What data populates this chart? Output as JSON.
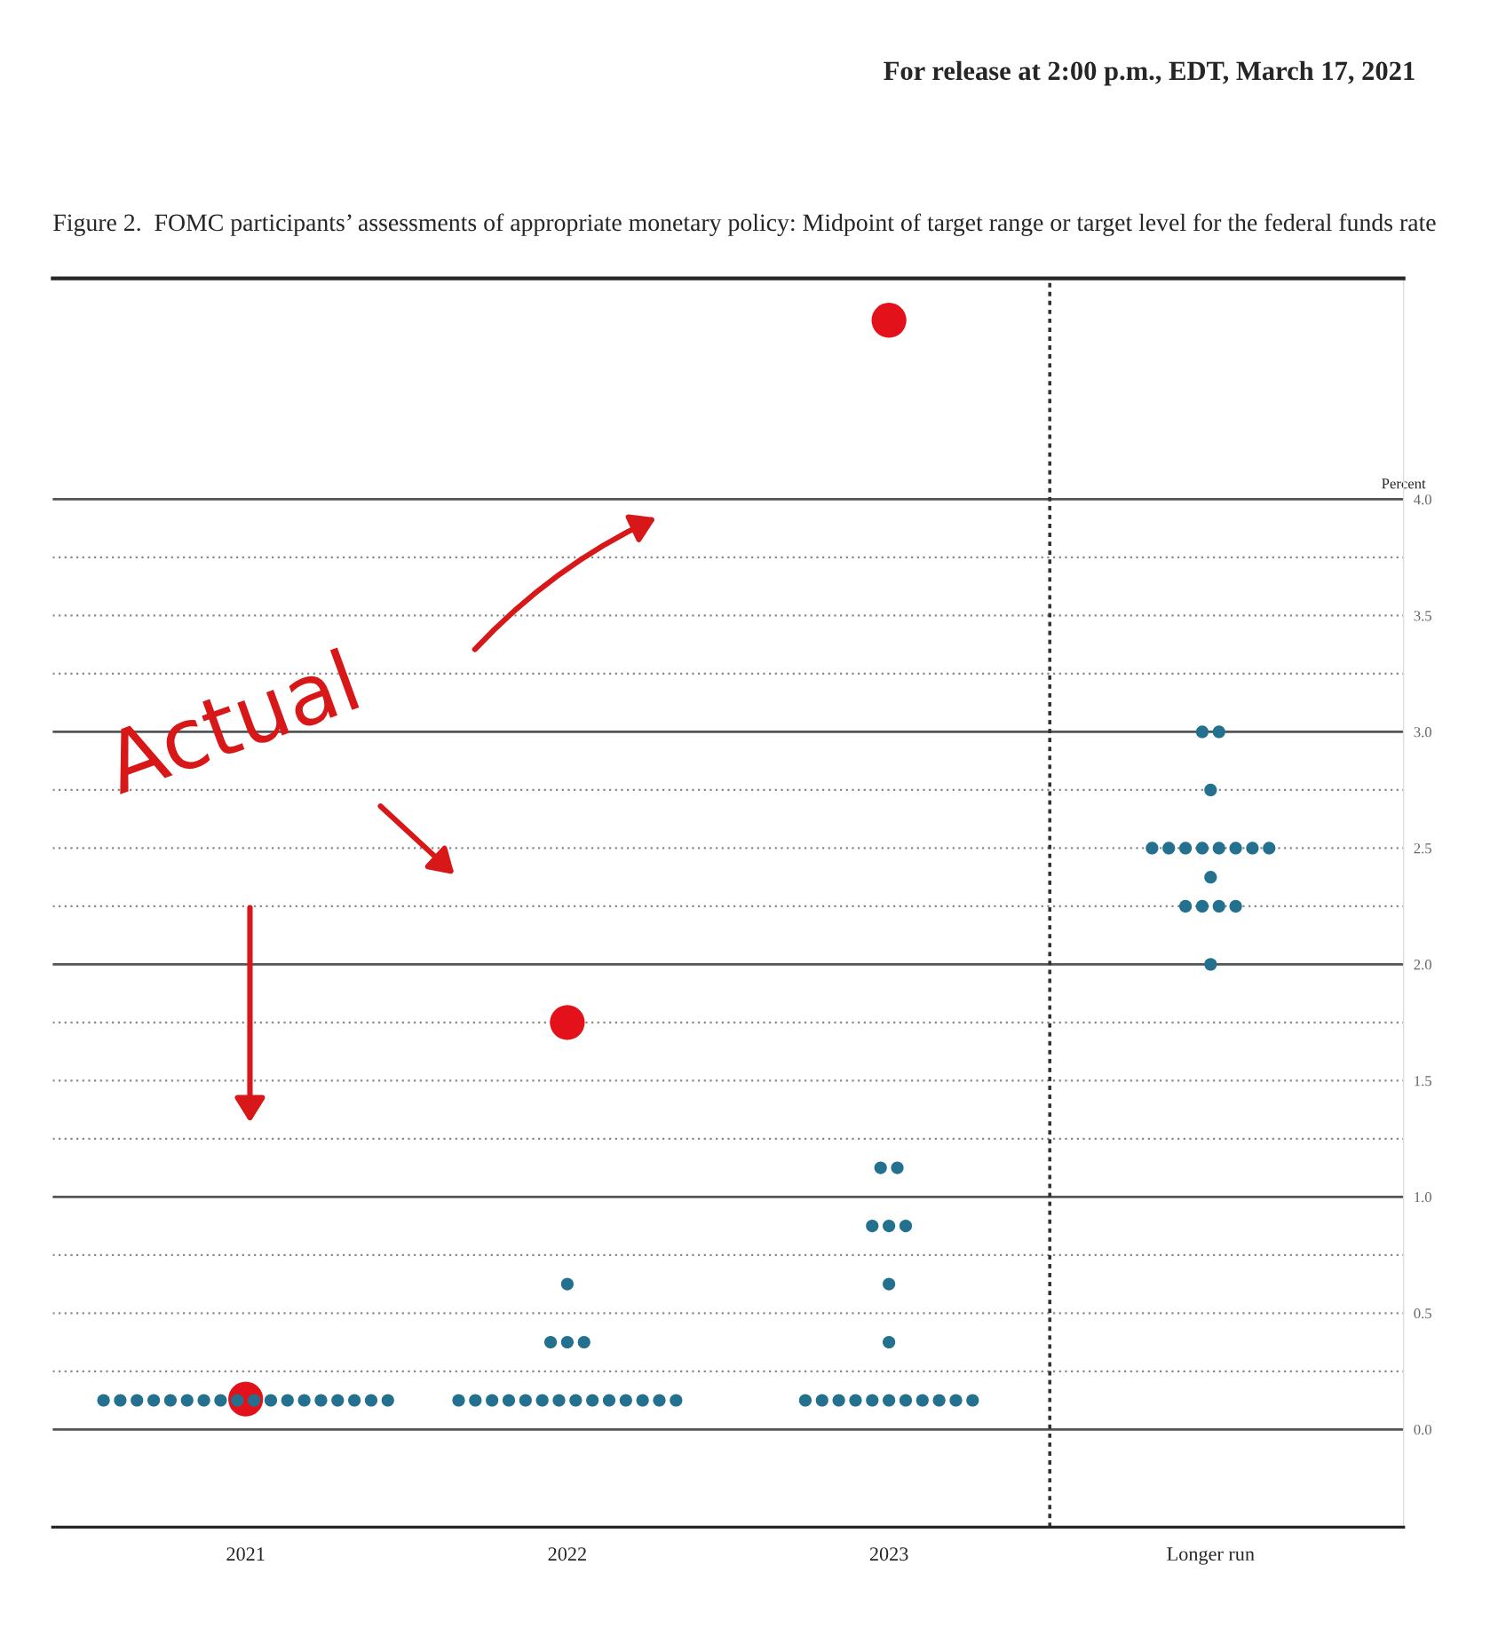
{
  "chart_data": {
    "type": "scatter",
    "title": "Figure 2.  FOMC participants’ assessments of appropriate monetary policy: Midpoint of target range or target level for the federal funds rate",
    "ylabel": "Percent",
    "annotations": [
      "For release at 2:00 p.m., EDT, March 17, 2021",
      "Actual"
    ],
    "categories": [
      "2021",
      "2022",
      "2023",
      "Longer run"
    ],
    "ylim": [
      -0.42,
      4.95
    ],
    "yticks": [
      {
        "value": 0,
        "label": "0.0"
      },
      {
        "value": 0.25,
        "label": null
      },
      0.5,
      {
        "value": 0.75,
        "label": null
      },
      {
        "value": 1,
        "label": "1.0"
      },
      {
        "value": 1.25,
        "label": null
      },
      1.5,
      {
        "value": 1.75,
        "label": null
      },
      {
        "value": 2,
        "label": "2.0"
      },
      {
        "value": 2.25,
        "label": null
      },
      2.5,
      {
        "value": 2.75,
        "label": null
      },
      {
        "value": 3,
        "label": "3.0"
      },
      {
        "value": 3.25,
        "label": null
      },
      3.5,
      {
        "value": 3.75,
        "label": null
      },
      {
        "value": 4,
        "label": "4.0"
      }
    ],
    "grid": "y",
    "marker": "circle",
    "series": [
      {
        "color": "#23708f",
        "values": [
          0.125,
          0.125,
          0.125,
          2.0
        ]
      },
      {
        "color": "#23708f",
        "values": [
          0.125,
          0.125,
          0.125,
          2.25
        ]
      },
      {
        "color": "#23708f",
        "values": [
          0.125,
          0.125,
          0.125,
          2.25
        ]
      },
      {
        "color": "#23708f",
        "values": [
          0.125,
          0.125,
          0.125,
          2.25
        ]
      },
      {
        "color": "#23708f",
        "values": [
          0.125,
          0.125,
          0.125,
          2.25
        ]
      },
      {
        "color": "#23708f",
        "values": [
          0.125,
          0.125,
          0.125,
          2.375
        ]
      },
      {
        "color": "#23708f",
        "values": [
          0.125,
          0.125,
          0.125,
          2.5
        ]
      },
      {
        "color": "#23708f",
        "values": [
          0.125,
          0.125,
          0.125,
          2.5
        ]
      },
      {
        "color": "#23708f",
        "values": [
          0.125,
          0.125,
          0.125,
          2.5
        ]
      },
      {
        "color": "#23708f",
        "values": [
          0.125,
          0.125,
          0.125,
          2.5
        ]
      },
      {
        "color": "#23708f",
        "values": [
          0.125,
          0.125,
          0.125,
          2.5
        ]
      },
      {
        "color": "#23708f",
        "values": [
          0.125,
          0.125,
          0.375,
          2.5
        ]
      },
      {
        "color": "#23708f",
        "values": [
          0.125,
          0.125,
          0.625,
          2.5
        ]
      },
      {
        "color": "#23708f",
        "values": [
          0.125,
          0.125,
          0.875,
          2.5
        ]
      },
      {
        "color": "#23708f",
        "values": [
          0.125,
          0.375,
          0.875,
          2.75
        ]
      },
      {
        "color": "#23708f",
        "values": [
          0.125,
          0.375,
          0.875,
          3.0
        ]
      },
      {
        "color": "#23708f",
        "values": [
          0.125,
          0.375,
          1.125,
          3.0
        ]
      },
      {
        "color": "#23708f",
        "values": [
          0.125,
          0.625,
          1.125,
          null
        ]
      },
      {
        "color": "#e3121a",
        "values": [
          0.13,
          1.75,
          4.77,
          null
        ]
      }
    ]
  }
}
